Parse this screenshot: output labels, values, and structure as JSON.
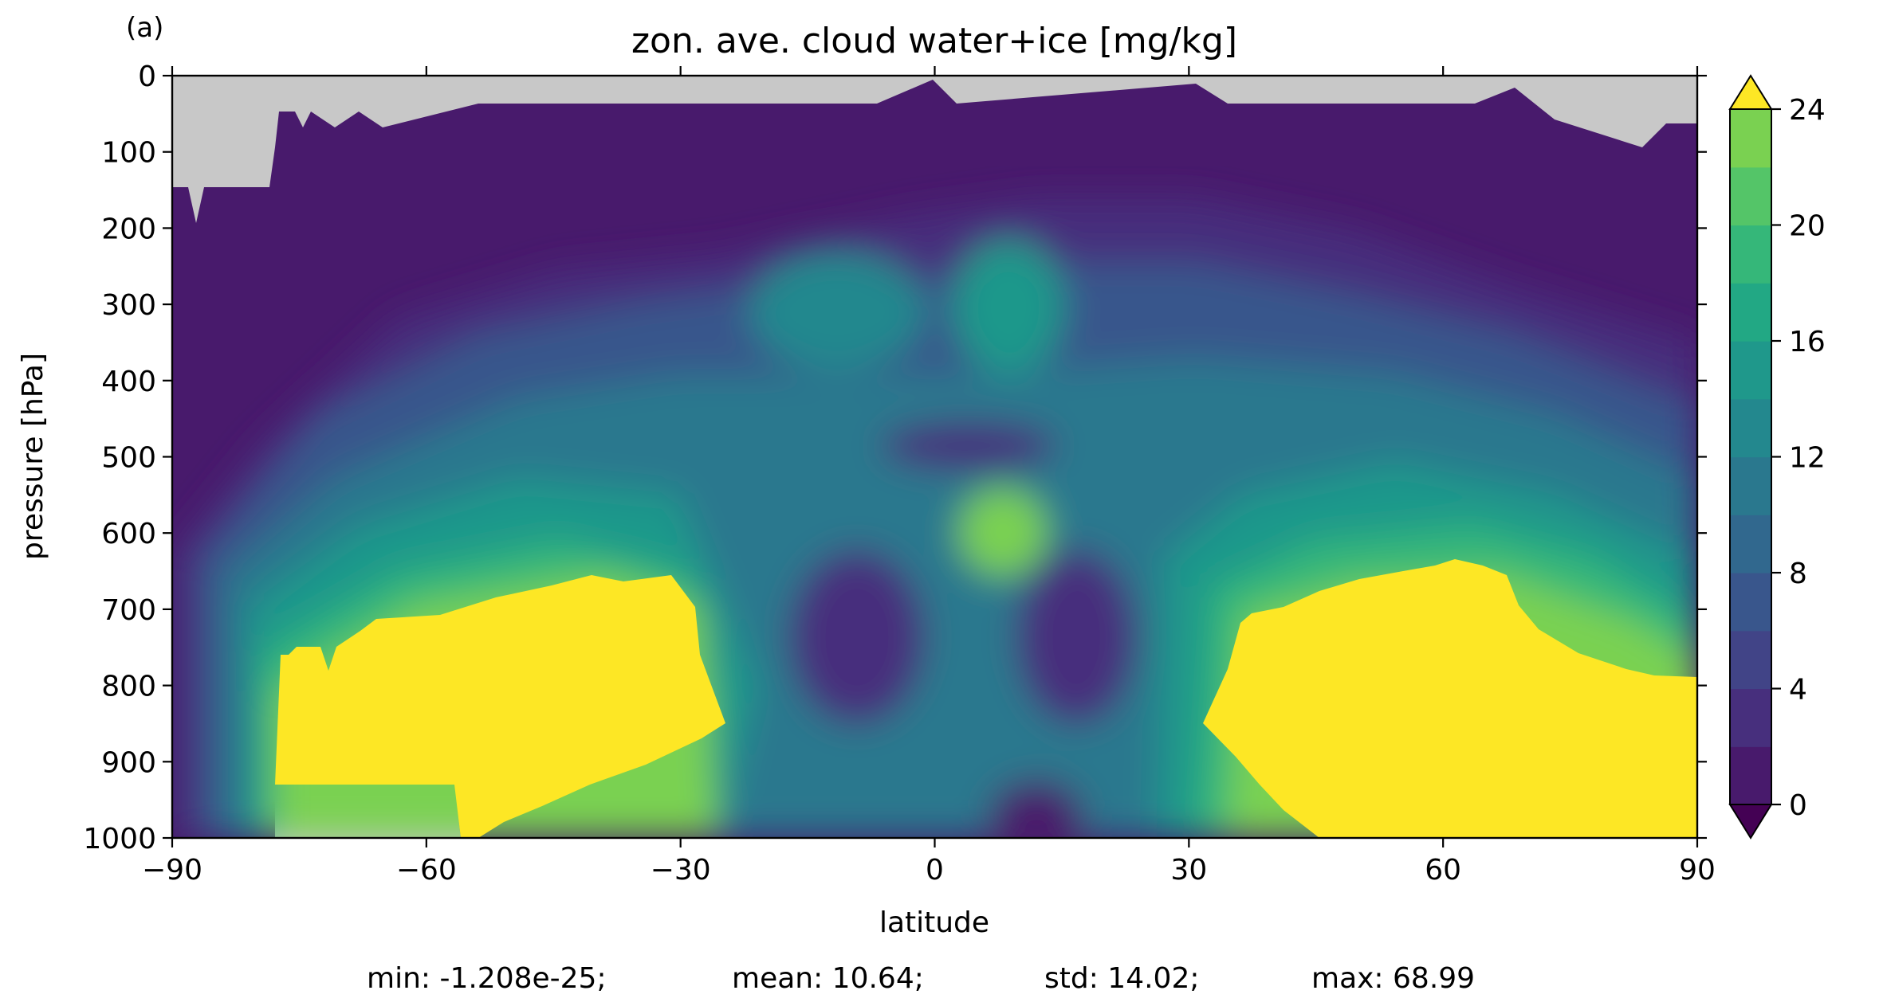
{
  "chart_data": {
    "type": "heatmap",
    "subtype": "filled-contour",
    "panel_label": "(a)",
    "title": "zon. ave. cloud water+ice [mg/kg]",
    "xlabel": "latitude",
    "ylabel": "pressure [hPa]",
    "xlim": [
      -90,
      90
    ],
    "ylim": [
      1000,
      0
    ],
    "y_inverted": true,
    "x_ticks": [
      -90,
      -60,
      -30,
      0,
      30,
      60,
      90
    ],
    "x_tick_labels": [
      "−90",
      "−60",
      "−30",
      "0",
      "30",
      "60",
      "90"
    ],
    "y_ticks": [
      0,
      100,
      200,
      300,
      400,
      500,
      600,
      700,
      800,
      900,
      1000
    ],
    "y_tick_labels": [
      "0",
      "100",
      "200",
      "300",
      "400",
      "500",
      "600",
      "700",
      "800",
      "900",
      "1000"
    ],
    "colormap": "viridis",
    "missing_color": "#c8c8c8",
    "colorbar": {
      "levels": [
        0,
        2,
        4,
        6,
        8,
        10,
        12,
        14,
        16,
        18,
        20,
        22,
        24
      ],
      "ticks": [
        0,
        4,
        8,
        12,
        16,
        20,
        24
      ],
      "tick_labels": [
        "0",
        "4",
        "8",
        "12",
        "16",
        "20",
        "24"
      ],
      "extend": "both",
      "colors": [
        "#440154",
        "#481a6c",
        "#472f7d",
        "#414487",
        "#39568c",
        "#31688e",
        "#2a788e",
        "#23888e",
        "#1f988b",
        "#22a884",
        "#35b779",
        "#54c568",
        "#7ad151",
        "#a5db36",
        "#fde725"
      ]
    },
    "summary": {
      "min": "min: -1.208e-25;",
      "mean": "mean: 10.64;",
      "std": "std: 14.02;",
      "max": "max: 68.99"
    }
  }
}
